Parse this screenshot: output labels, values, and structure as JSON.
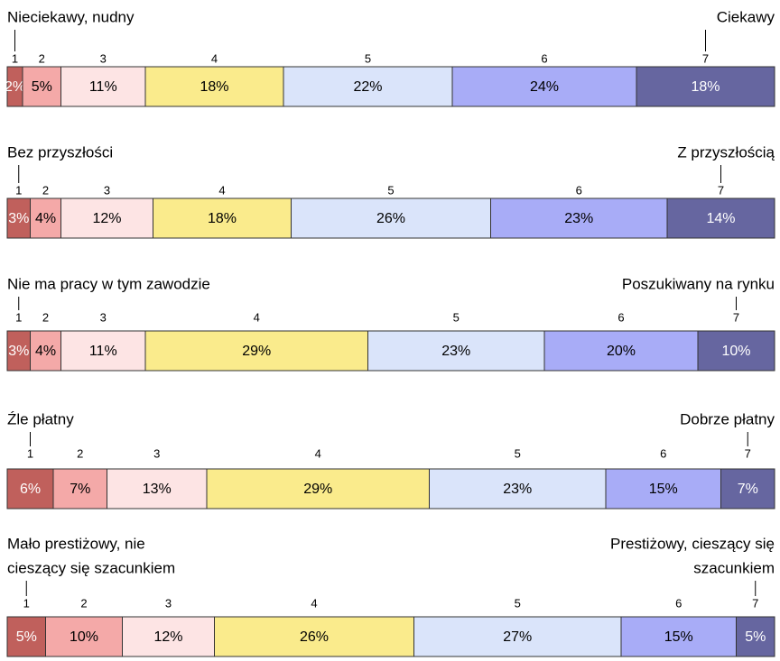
{
  "chart_data": [
    {
      "type": "bar",
      "left_label": [
        "Nieciekawy, nudny"
      ],
      "right_label": [
        "Ciekawy"
      ],
      "categories": [
        "1",
        "2",
        "3",
        "4",
        "5",
        "6",
        "7"
      ],
      "values": [
        2,
        5,
        11,
        18,
        22,
        24,
        18
      ],
      "value_labels": [
        "2%",
        "5%",
        "11%",
        "18%",
        "22%",
        "24%",
        "18%"
      ],
      "colors": [
        "#c0605c",
        "#f4a9a8",
        "#fde4e4",
        "#faeb8c",
        "#dae4fa",
        "#a8acf7",
        "#6666a0"
      ]
    },
    {
      "type": "bar",
      "left_label": [
        "Bez przyszłości"
      ],
      "right_label": [
        "Z przyszłością"
      ],
      "categories": [
        "1",
        "2",
        "3",
        "4",
        "5",
        "6",
        "7"
      ],
      "values": [
        3,
        4,
        12,
        18,
        26,
        23,
        14
      ],
      "value_labels": [
        "3%",
        "4%",
        "12%",
        "18%",
        "26%",
        "23%",
        "14%"
      ],
      "colors": [
        "#c0605c",
        "#f4a9a8",
        "#fde4e4",
        "#faeb8c",
        "#dae4fa",
        "#a8acf7",
        "#6666a0"
      ]
    },
    {
      "type": "bar",
      "left_label": [
        "Nie ma pracy w tym zawodzie"
      ],
      "right_label": [
        "Poszukiwany na rynku"
      ],
      "categories": [
        "1",
        "2",
        "3",
        "4",
        "5",
        "6",
        "7"
      ],
      "values": [
        3,
        4,
        11,
        29,
        23,
        20,
        10
      ],
      "value_labels": [
        "3%",
        "4%",
        "11%",
        "29%",
        "23%",
        "20%",
        "10%"
      ],
      "colors": [
        "#c0605c",
        "#f4a9a8",
        "#fde4e4",
        "#faeb8c",
        "#dae4fa",
        "#a8acf7",
        "#6666a0"
      ]
    },
    {
      "type": "bar",
      "left_label": [
        "Źle płatny"
      ],
      "right_label": [
        "Dobrze płatny"
      ],
      "categories": [
        "1",
        "2",
        "3",
        "4",
        "5",
        "6",
        "7"
      ],
      "values": [
        6,
        7,
        13,
        29,
        23,
        15,
        7
      ],
      "value_labels": [
        "6%",
        "7%",
        "13%",
        "29%",
        "23%",
        "15%",
        "7%"
      ],
      "colors": [
        "#c0605c",
        "#f4a9a8",
        "#fde4e4",
        "#faeb8c",
        "#dae4fa",
        "#a8acf7",
        "#6666a0"
      ]
    },
    {
      "type": "bar",
      "left_label": [
        "Mało prestiżowy, nie",
        "cieszący się szacunkiem"
      ],
      "right_label": [
        "Prestiżowy, cieszący się",
        "szacunkiem"
      ],
      "categories": [
        "1",
        "2",
        "3",
        "4",
        "5",
        "6",
        "7"
      ],
      "values": [
        5,
        10,
        12,
        26,
        27,
        15,
        5
      ],
      "value_labels": [
        "5%",
        "10%",
        "12%",
        "26%",
        "27%",
        "15%",
        "5%"
      ],
      "colors": [
        "#c0605c",
        "#f4a9a8",
        "#fde4e4",
        "#faeb8c",
        "#dae4fa",
        "#a8acf7",
        "#6666a0"
      ]
    }
  ]
}
